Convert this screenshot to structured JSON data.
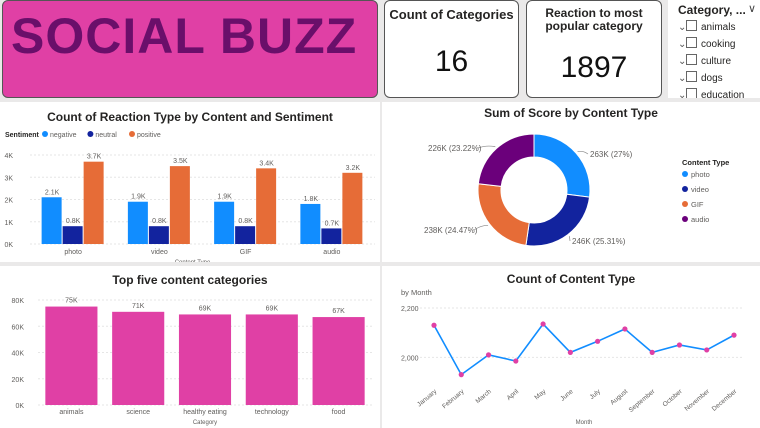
{
  "header": {
    "title": "SOCIAL BUZZ"
  },
  "kpis": {
    "count_of_categories": {
      "label": "Count of Categories",
      "value": "16"
    },
    "reaction_popular": {
      "label_line1": "Reaction to most",
      "label_line2": "popular category",
      "value": "1897"
    }
  },
  "slicer": {
    "title": "Category, ...",
    "items": [
      "animals",
      "cooking",
      "culture",
      "dogs",
      "education"
    ]
  },
  "chart_data": [
    {
      "type": "bar",
      "title": "Count of Reaction Type by Content and Sentiment",
      "legend_title": "Sentiment",
      "legend_placement": "top-left",
      "xlabel": "Content Type",
      "ylabel": "",
      "categories": [
        "photo",
        "video",
        "GIF",
        "audio"
      ],
      "series": [
        {
          "name": "negative",
          "color": "#118dff",
          "values": [
            2100,
            1900,
            1900,
            1800
          ],
          "labels": [
            "2.1K",
            "1.9K",
            "1.9K",
            "1.8K"
          ]
        },
        {
          "name": "neutral",
          "color": "#12239e",
          "values": [
            800,
            800,
            800,
            700
          ],
          "labels": [
            "0.8K",
            "0.8K",
            "0.8K",
            "0.7K"
          ]
        },
        {
          "name": "positive",
          "color": "#e66c37",
          "values": [
            3700,
            3500,
            3400,
            3200
          ],
          "labels": [
            "3.7K",
            "3.5K",
            "3.4K",
            "3.2K"
          ]
        }
      ],
      "ylim": [
        0,
        4000
      ],
      "yticks": [
        "0K",
        "1K",
        "2K",
        "3K",
        "4K"
      ]
    },
    {
      "type": "pie",
      "title": "Sum of Score by Content Type",
      "legend_title": "Content Type",
      "legend_placement": "right",
      "slices": [
        {
          "name": "photo",
          "value": 263,
          "label": "263K (27%)",
          "color": "#118dff"
        },
        {
          "name": "video",
          "value": 246,
          "label": "246K (25.31%)",
          "color": "#12239e"
        },
        {
          "name": "GIF",
          "value": 238,
          "label": "238K (24.47%)",
          "color": "#e66c37"
        },
        {
          "name": "audio",
          "value": 226,
          "label": "226K (23.22%)",
          "color": "#6b007b"
        }
      ]
    },
    {
      "type": "bar",
      "title": "Top five content categories",
      "xlabel": "Category",
      "ylabel": "",
      "categories": [
        "animals",
        "science",
        "healthy eating",
        "technology",
        "food"
      ],
      "values": [
        75000,
        71000,
        69000,
        69000,
        67000
      ],
      "labels": [
        "75K",
        "71K",
        "69K",
        "69K",
        "67K"
      ],
      "color": "#e040a5",
      "ylim": [
        0,
        80000
      ],
      "yticks": [
        "0K",
        "20K",
        "40K",
        "60K",
        "80K"
      ]
    },
    {
      "type": "line",
      "title": "Count of Content Type",
      "subtitle": "by Month",
      "xlabel": "Month",
      "ylabel": "",
      "x": [
        "January",
        "February",
        "March",
        "April",
        "May",
        "June",
        "July",
        "August",
        "September",
        "October",
        "November",
        "December"
      ],
      "values": [
        2130,
        1930,
        2010,
        1985,
        2135,
        2020,
        2065,
        2115,
        2020,
        2050,
        2030,
        2090
      ],
      "color": "#118dff",
      "ylim": [
        1900,
        2200
      ],
      "yticks": [
        "2,000",
        "2,200"
      ]
    }
  ]
}
